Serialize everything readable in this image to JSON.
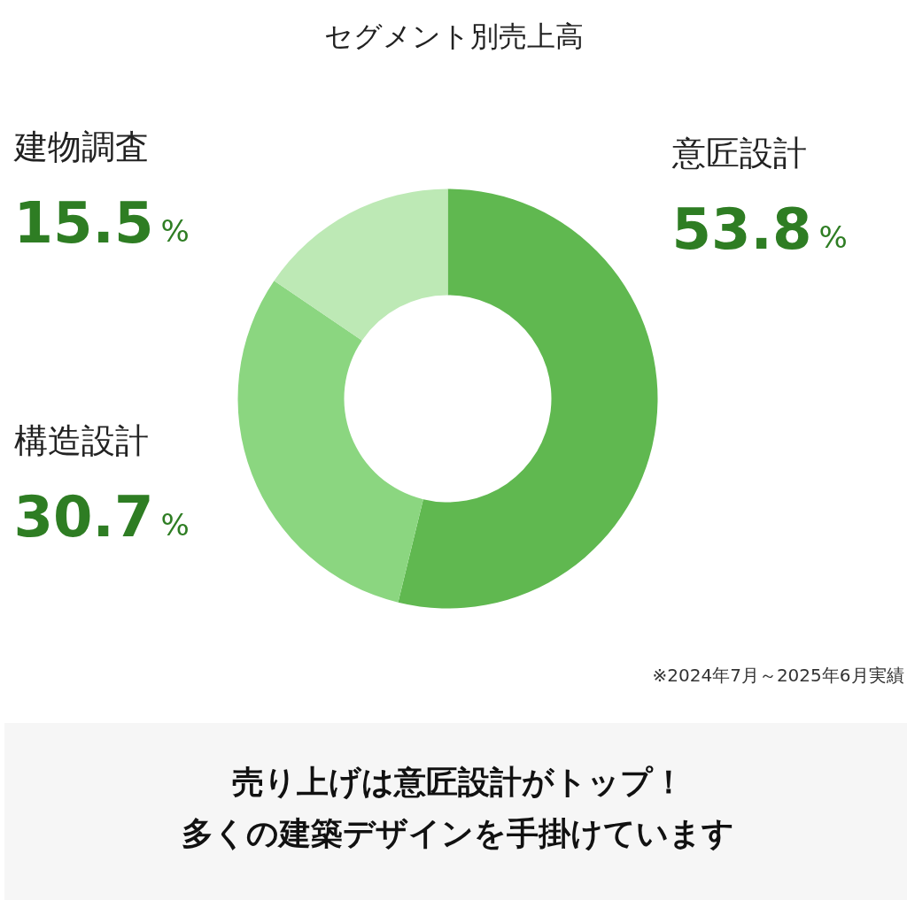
{
  "chart_data": {
    "type": "donut",
    "title": "セグメント別売上高",
    "categories": [
      "意匠設計",
      "構造設計",
      "建物調査"
    ],
    "values": [
      53.8,
      30.7,
      15.5
    ],
    "colors": [
      "#60b850",
      "#8bd680",
      "#bde9b5"
    ],
    "value_labels": [
      "53.8%",
      "30.7%",
      "15.5%"
    ],
    "annotations": [
      "※2024年7月～2025年6月実績",
      "売り上げは意匠設計がトップ！",
      "多くの建築デザインを手掛けています"
    ]
  }
}
